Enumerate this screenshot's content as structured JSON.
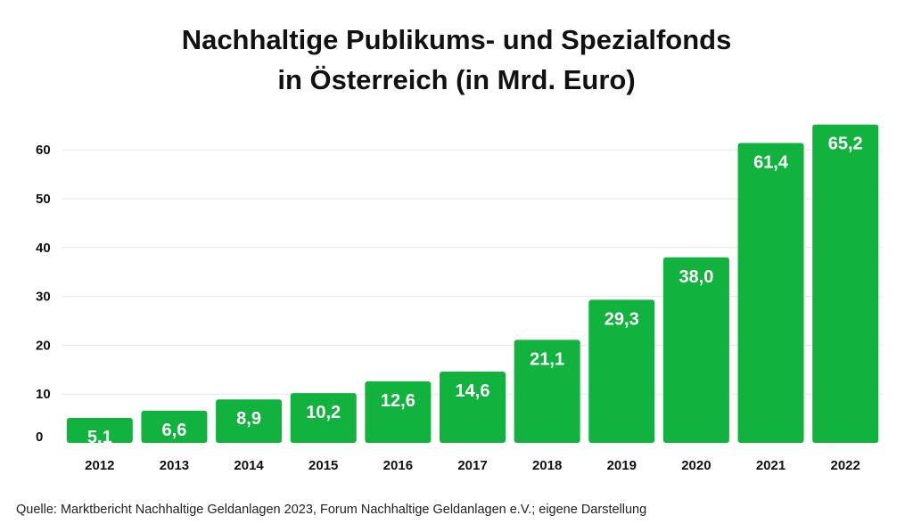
{
  "chart_data": {
    "type": "bar",
    "title": [
      "Nachhaltige Publikums- und Spezialfonds",
      "in Österreich (in Mrd. Euro)"
    ],
    "categories": [
      "2012",
      "2013",
      "2014",
      "2015",
      "2016",
      "2017",
      "2018",
      "2019",
      "2020",
      "2021",
      "2022"
    ],
    "values": [
      5.1,
      6.6,
      8.9,
      10.2,
      12.6,
      14.6,
      21.1,
      29.3,
      38.0,
      61.4,
      65.2
    ],
    "value_labels": [
      "5,1",
      "6,6",
      "8,9",
      "10,2",
      "12,6",
      "14,6",
      "21,1",
      "29,3",
      "38,0",
      "61,4",
      "65,2"
    ],
    "yticks": [
      0,
      10,
      20,
      30,
      40,
      50,
      60
    ],
    "ylim": [
      0,
      65.2
    ],
    "xlabel": "",
    "ylabel": "",
    "grid": true,
    "bar_color": "#12b23e",
    "grid_color": "#e6e6e6"
  },
  "source": "Quelle: Marktbericht Nachhaltige Geldanlagen 2023, Forum Nachhaltige Geldanlagen e.V.; eigene Darstellung"
}
